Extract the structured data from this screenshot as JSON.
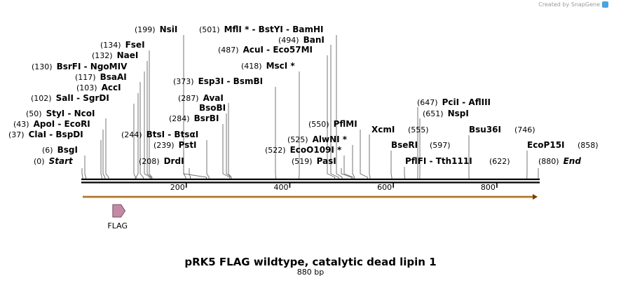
{
  "credit": "Created by SnapGene",
  "title": "pRK5 FLAG wildtype, catalytic dead lipin 1",
  "subtitle": "880 bp",
  "sequence_length": 880,
  "ruler_ticks": [
    200,
    400,
    600,
    800
  ],
  "sites": [
    {
      "pos": "(0)",
      "name": "Start",
      "bp": 0,
      "italic": true
    },
    {
      "pos": "(6)",
      "name": "BsgI",
      "bp": 6
    },
    {
      "pos": "(37)",
      "name": "ClaI  - BspDI",
      "bp": 37
    },
    {
      "pos": "(43)",
      "name": "ApoI  - EcoRI",
      "bp": 43
    },
    {
      "pos": "(50)",
      "name": "StyI  - NcoI",
      "bp": 50
    },
    {
      "pos": "(102)",
      "name": "SalI  - SgrDI",
      "bp": 102
    },
    {
      "pos": "(103)",
      "name": "AccI",
      "bp": 103
    },
    {
      "pos": "(117)",
      "name": "BsaAI",
      "bp": 117
    },
    {
      "pos": "(130)",
      "name": "BsrFI  - NgoMIV",
      "bp": 130
    },
    {
      "pos": "(132)",
      "name": "NaeI",
      "bp": 132
    },
    {
      "pos": "(134)",
      "name": "FseI",
      "bp": 134
    },
    {
      "pos": "(199)",
      "name": "NsiI",
      "bp": 199
    },
    {
      "pos": "(208)",
      "name": "DrdI",
      "bp": 208
    },
    {
      "pos": "(239)",
      "name": "PstI",
      "bp": 239
    },
    {
      "pos": "(244)",
      "name": "BtsI  - BtsαI",
      "bp": 244
    },
    {
      "pos": "(284)",
      "name": "BsrBI",
      "bp": 284
    },
    {
      "pos": "",
      "name": "BsoBI",
      "bp": 287
    },
    {
      "pos": "(287)",
      "name": "AvaI",
      "bp": 287
    },
    {
      "pos": "(373)",
      "name": "Esp3I  - BsmBI",
      "bp": 373
    },
    {
      "pos": "(418)",
      "name": "MscI *",
      "bp": 418
    },
    {
      "pos": "(487)",
      "name": "AcuI  - Eco57MI",
      "bp": 487
    },
    {
      "pos": "(494)",
      "name": "BanI",
      "bp": 494
    },
    {
      "pos": "(501)",
      "name": "MflI *  - BstYI  - BamHI",
      "bp": 501
    },
    {
      "pos": "(519)",
      "name": "PasI",
      "bp": 519
    },
    {
      "pos": "(522)",
      "name": "EcoO109I *",
      "bp": 522
    },
    {
      "pos": "(525)",
      "name": "AlwNI *",
      "bp": 525
    },
    {
      "pos": "(550)",
      "name": "PflMI",
      "bp": 550
    },
    {
      "pos": "",
      "name": "XcmI",
      "bp": 555
    },
    {
      "pos": "(555)",
      "name": "",
      "bp": 555
    },
    {
      "pos": "",
      "name": "BseRI",
      "bp": 597
    },
    {
      "pos": "(597)",
      "name": "",
      "bp": 597
    },
    {
      "pos": "",
      "name": "PflFI  - Tth111I",
      "bp": 622
    },
    {
      "pos": "(622)",
      "name": "",
      "bp": 622
    },
    {
      "pos": "(647)",
      "name": "PciI  - AflIII",
      "bp": 647
    },
    {
      "pos": "(651)",
      "name": "NspI",
      "bp": 651
    },
    {
      "pos": "",
      "name": "Bsu36I",
      "bp": 746
    },
    {
      "pos": "(746)",
      "name": "",
      "bp": 746
    },
    {
      "pos": "",
      "name": "EcoP15I",
      "bp": 858
    },
    {
      "pos": "(858)",
      "name": "",
      "bp": 858
    },
    {
      "pos": "(880)",
      "name": "End",
      "bp": 880,
      "italic": true
    }
  ],
  "features": [
    {
      "name": "FLAG",
      "start_bp": 58,
      "end_bp": 82,
      "color": "#c48aa5"
    }
  ],
  "orf": {
    "start_bp": 0,
    "end_bp": 880,
    "color": "#f0a830"
  },
  "colors": {
    "backbone": "#000000",
    "leader": "#666666",
    "credit": "#9a9a9a"
  }
}
